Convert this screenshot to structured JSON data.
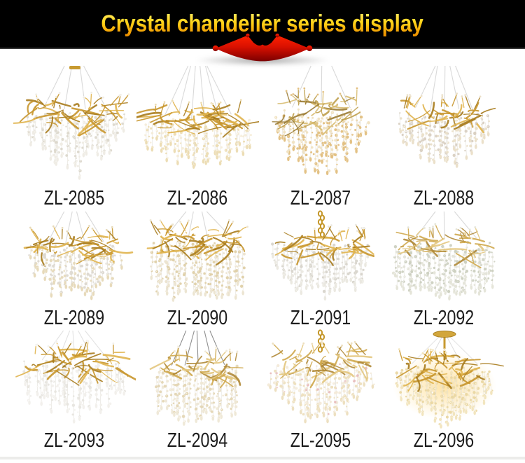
{
  "header": {
    "title": "Crystal chandelier series display",
    "background": "#000000",
    "title_gradient": [
      "#ffe95e",
      "#ffd318",
      "#ee9300"
    ],
    "crown_gradient": [
      "#ff2200",
      "#d81000",
      "#7c0000"
    ]
  },
  "footer": {
    "divider_color": "#ececea"
  },
  "products": [
    {
      "model": "ZL-2085",
      "style": {
        "seed": 11,
        "susp": "canopy-wires",
        "wires": 4,
        "wireColor": "#d9d9d9",
        "bodyTop": 52,
        "bodyW": 150,
        "bodyH": 100,
        "maxL": 86,
        "shape": "tri",
        "branches": [
          "#c8962c",
          "#e0b44e",
          "#a87c1e"
        ],
        "crystals": [
          "#efece4",
          "#dcd8cc"
        ],
        "nb": 42,
        "ns": 32
      }
    },
    {
      "model": "ZL-2086",
      "style": {
        "seed": 22,
        "susp": "wires",
        "wires": 6,
        "wireColor": "#d9d9d9",
        "bodyTop": 64,
        "bodyW": 158,
        "bodyH": 92,
        "maxL": 64,
        "shape": "wide",
        "branches": [
          "#c8962c",
          "#e0b44e",
          "#a87c1e"
        ],
        "crystals": [
          "#ecdcb2",
          "#f4ecd8"
        ],
        "nb": 46,
        "ns": 34
      }
    },
    {
      "model": "ZL-2087",
      "style": {
        "seed": 33,
        "susp": "wires",
        "wires": 3,
        "wireColor": "#d9d9d9",
        "bodyTop": 48,
        "bodyW": 138,
        "bodyH": 108,
        "maxL": 74,
        "shape": "round",
        "branches": [
          "#bfa04e",
          "#d8bc72",
          "#9c7d36"
        ],
        "crystals": [
          "#e2bf80",
          "#f0e2c0"
        ],
        "nb": 32,
        "ns": 34
      }
    },
    {
      "model": "ZL-2088",
      "style": {
        "seed": 44,
        "susp": "wires",
        "wires": 5,
        "wireColor": "#d9d9d9",
        "bodyTop": 54,
        "bodyW": 138,
        "bodyH": 100,
        "maxL": 74,
        "shape": "tri",
        "branches": [
          "#c8962c",
          "#e0b44e",
          "#a87c1e"
        ],
        "crystals": [
          "#eadfc8",
          "#d9d0c2"
        ],
        "nb": 28,
        "ns": 32
      }
    },
    {
      "model": "ZL-2089",
      "style": {
        "seed": 55,
        "susp": "wires",
        "wires": 4,
        "wireColor": "#d9d9d9",
        "bodyTop": 36,
        "bodyW": 138,
        "bodyH": 90,
        "maxL": 64,
        "shape": "round",
        "branches": [
          "#c8962c",
          "#e0b44e",
          "#a87c1e"
        ],
        "crystals": [
          "#e6d9b8",
          "#dcd8d0"
        ],
        "nb": 38,
        "ns": 32
      }
    },
    {
      "model": "ZL-2090",
      "style": {
        "seed": 66,
        "susp": "wires",
        "wires": 4,
        "wireColor": "#d9d9d9",
        "bodyTop": 28,
        "bodyW": 142,
        "bodyH": 96,
        "maxL": 76,
        "shape": "willow",
        "branches": [
          "#c8962c",
          "#e0b44e",
          "#a87c1e"
        ],
        "crystals": [
          "#ece4d0",
          "#dfd0a8"
        ],
        "nb": 42,
        "ns": 32
      }
    },
    {
      "model": "ZL-2091",
      "style": {
        "seed": 77,
        "susp": "chain",
        "wires": 0,
        "wireColor": "#d9d9d9",
        "bodyTop": 34,
        "bodyW": 150,
        "bodyH": 92,
        "maxL": 66,
        "shape": "round",
        "branches": [
          "#c8962c",
          "#e0b44e",
          "#a87c1e"
        ],
        "crystals": [
          "#eae8e0",
          "#d8d5cc"
        ],
        "nb": 38,
        "ns": 36
      }
    },
    {
      "model": "ZL-2092",
      "style": {
        "seed": 88,
        "susp": "wires",
        "wires": 3,
        "wireColor": "#d9d9d9",
        "bodyTop": 32,
        "bodyW": 152,
        "bodyH": 94,
        "maxL": 68,
        "shape": "bowl",
        "branches": [
          "#cfa94e",
          "#e3c77e",
          "#b08a38"
        ],
        "crystals": [
          "#e4e4d8",
          "#ccd0c0"
        ],
        "nb": 34,
        "ns": 36
      }
    },
    {
      "model": "ZL-2093",
      "style": {
        "seed": 99,
        "susp": "wires",
        "wires": 5,
        "wireColor": "#e2e2e2",
        "bodyTop": 30,
        "bodyW": 156,
        "bodyH": 98,
        "maxL": 74,
        "shape": "wide",
        "branches": [
          "#c8962c",
          "#e0b44e",
          "#a87c1e"
        ],
        "crystals": [
          "#f2f0ec",
          "#e7e5df"
        ],
        "nb": 46,
        "ns": 32
      }
    },
    {
      "model": "ZL-2094",
      "style": {
        "seed": 110,
        "susp": "wires",
        "wires": 5,
        "wireColor": "#8f8f8f",
        "bodyTop": 38,
        "bodyW": 126,
        "bodyH": 96,
        "maxL": 72,
        "shape": "willow",
        "branches": [
          "#cfa94e",
          "#e3c77e",
          "#b08a38"
        ],
        "crystals": [
          "#efe8d6",
          "#e4d6b4"
        ],
        "nb": 34,
        "ns": 28
      }
    },
    {
      "model": "ZL-2095",
      "style": {
        "seed": 121,
        "susp": "chain",
        "wires": 0,
        "wireColor": "#d9d9d9",
        "bodyTop": 30,
        "bodyW": 150,
        "bodyH": 102,
        "maxL": 74,
        "shape": "round",
        "branches": [
          "#cfa94e",
          "#e3c77e",
          "#b08a38"
        ],
        "crystals": [
          "#eddfbe",
          "#f3ead8"
        ],
        "accent": "#e8bcbc",
        "nb": 38,
        "ns": 36
      }
    },
    {
      "model": "ZL-2096",
      "style": {
        "seed": 132,
        "susp": "canopy-rod",
        "wires": 0,
        "wireColor": "#e6e6e6",
        "bodyTop": 40,
        "bodyW": 148,
        "bodyH": 96,
        "maxL": 70,
        "shape": "round",
        "branches": [
          "#c8962c",
          "#e0b44e",
          "#a87c1e"
        ],
        "crystals": [
          "#f2e4bc",
          "#ead7a2"
        ],
        "glow": "#ffe2a0",
        "nb": 38,
        "ns": 36
      }
    }
  ]
}
